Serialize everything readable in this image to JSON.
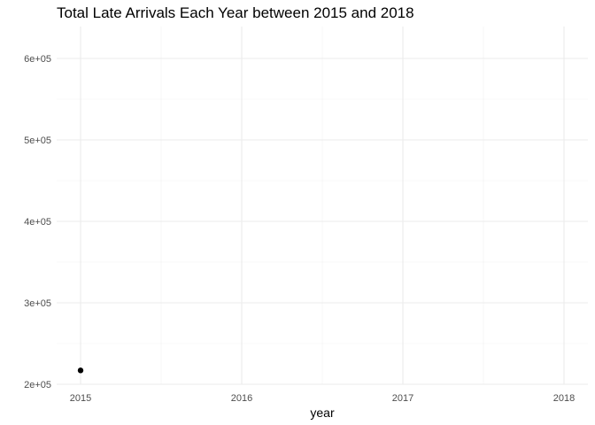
{
  "chart_data": {
    "type": "scatter",
    "title": "Total Late Arrivals Each Year between 2015 and 2018",
    "xlabel": "year",
    "ylabel": "",
    "x_ticks": [
      2015,
      2016,
      2017,
      2018
    ],
    "x_tick_labels": [
      "2015",
      "2016",
      "2017",
      "2018"
    ],
    "y_ticks": [
      200000,
      300000,
      400000,
      500000,
      600000
    ],
    "y_tick_labels": [
      "2e+05",
      "3e+05",
      "4e+05",
      "5e+05",
      "6e+05"
    ],
    "xlim": [
      2015,
      2018
    ],
    "ylim": [
      200000,
      600000
    ],
    "grid": true,
    "legend": "none",
    "colors": {
      "point": "#000000",
      "grid_major": "#ebebeb",
      "grid_minor": "#f2f2f2"
    },
    "series": [
      {
        "x": [
          2015
        ],
        "y": [
          217000
        ]
      }
    ]
  }
}
